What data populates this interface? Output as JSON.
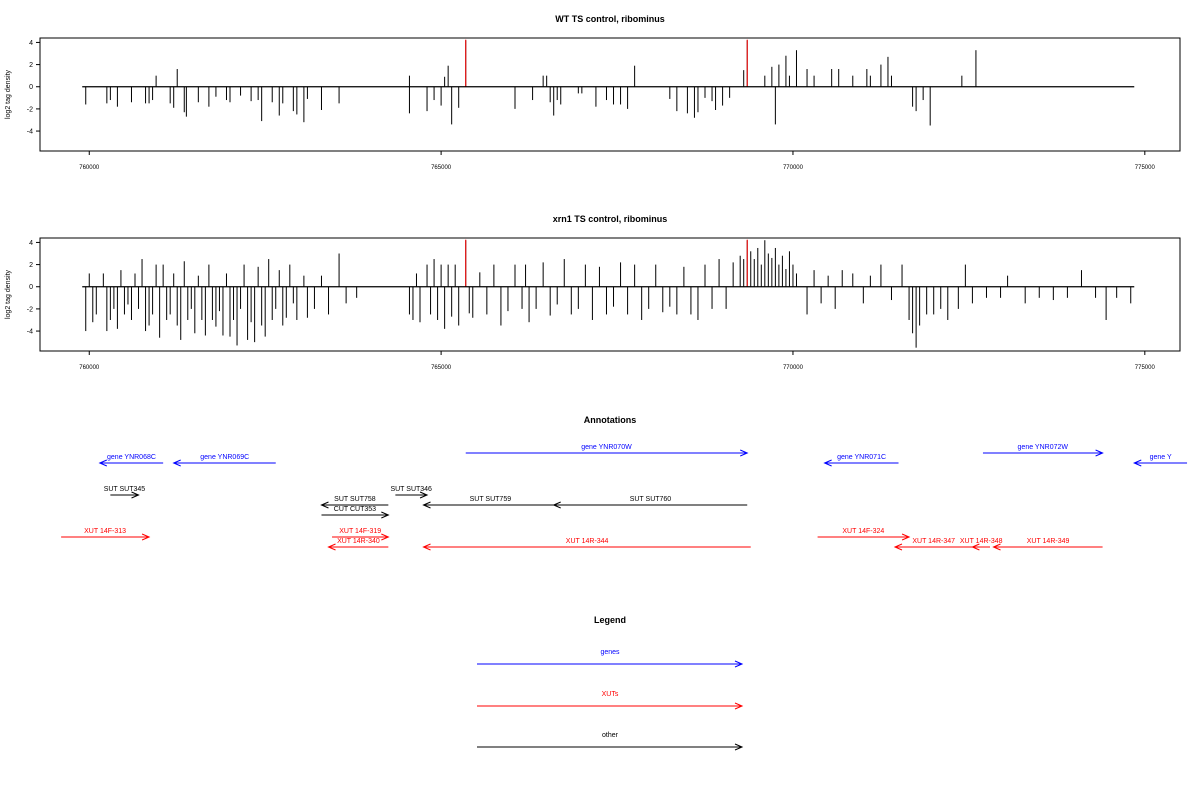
{
  "colors": {
    "bars": "#000000",
    "highlight": "#ff0000",
    "genes": "#0000ff",
    "xuts": "#ff0000",
    "other": "#000000"
  },
  "chart_data": [
    {
      "type": "bar",
      "title": "WT TS control, ribominus",
      "xlabel": "",
      "ylabel": "log2 tag density",
      "xlim": [
        759300,
        775500
      ],
      "ylim": [
        -5.8,
        4.4
      ],
      "xticks": [
        760000,
        765000,
        770000,
        775000
      ],
      "xtick_labels": [
        "760000",
        "765000",
        "770000",
        "775000"
      ],
      "yticks": [
        4,
        2,
        0,
        -2,
        -4
      ],
      "ytick_labels": [
        "4",
        "2",
        "0",
        "-2",
        "-4"
      ],
      "baseline": {
        "start": 759900,
        "end": 774850
      },
      "highlight_x": [
        765350,
        769350
      ],
      "points": [
        [
          759950,
          -1.6
        ],
        [
          760250,
          -1.5
        ],
        [
          760300,
          -1.2
        ],
        [
          760400,
          -1.8
        ],
        [
          760600,
          -1.4
        ],
        [
          760800,
          -1.5
        ],
        [
          760850,
          -1.5
        ],
        [
          760900,
          -1.2
        ],
        [
          760950,
          1.0
        ],
        [
          761150,
          -1.5
        ],
        [
          761250,
          1.6
        ],
        [
          761200,
          -1.9
        ],
        [
          761350,
          -2.3
        ],
        [
          761380,
          -2.7
        ],
        [
          761550,
          -1.4
        ],
        [
          761700,
          -1.8
        ],
        [
          761800,
          -0.9
        ],
        [
          761950,
          -1.2
        ],
        [
          762000,
          -1.4
        ],
        [
          762150,
          -0.8
        ],
        [
          762300,
          -1.3
        ],
        [
          762400,
          -1.2
        ],
        [
          762450,
          -3.1
        ],
        [
          762600,
          -1.4
        ],
        [
          762700,
          -2.6
        ],
        [
          762750,
          -1.5
        ],
        [
          762900,
          -2.2
        ],
        [
          762950,
          -2.5
        ],
        [
          763050,
          -3.2
        ],
        [
          763100,
          -1.1
        ],
        [
          763300,
          -2.1
        ],
        [
          763550,
          -1.5
        ],
        [
          764550,
          -2.4
        ],
        [
          764550,
          1.0
        ],
        [
          764800,
          -2.2
        ],
        [
          764900,
          -1.2
        ],
        [
          765000,
          -1.7
        ],
        [
          765050,
          0.9
        ],
        [
          765100,
          1.9
        ],
        [
          765150,
          -3.4
        ],
        [
          765250,
          -1.9
        ],
        [
          765350,
          4.2
        ],
        [
          766050,
          -2.0
        ],
        [
          766300,
          -1.2
        ],
        [
          766450,
          1.0
        ],
        [
          766500,
          1.0
        ],
        [
          766550,
          -1.4
        ],
        [
          766600,
          -2.6
        ],
        [
          766650,
          -1.2
        ],
        [
          766700,
          -1.6
        ],
        [
          766950,
          -0.6
        ],
        [
          767000,
          -0.6
        ],
        [
          767200,
          -1.8
        ],
        [
          767350,
          -1.2
        ],
        [
          767450,
          -1.6
        ],
        [
          767550,
          -1.6
        ],
        [
          767650,
          -2.0
        ],
        [
          767750,
          1.9
        ],
        [
          768250,
          -1.1
        ],
        [
          768350,
          -2.2
        ],
        [
          768500,
          -2.4
        ],
        [
          768600,
          -2.8
        ],
        [
          768650,
          -2.3
        ],
        [
          768750,
          -1.0
        ],
        [
          768850,
          -1.3
        ],
        [
          768900,
          -2.1
        ],
        [
          769000,
          -1.7
        ],
        [
          769100,
          -1.0
        ],
        [
          769300,
          1.5
        ],
        [
          769350,
          4.2
        ],
        [
          769600,
          1.0
        ],
        [
          769700,
          1.8
        ],
        [
          769750,
          -3.4
        ],
        [
          769800,
          2.0
        ],
        [
          769900,
          2.8
        ],
        [
          769950,
          1.0
        ],
        [
          770050,
          3.3
        ],
        [
          770200,
          1.6
        ],
        [
          770300,
          1.0
        ],
        [
          770550,
          1.6
        ],
        [
          770650,
          1.6
        ],
        [
          770850,
          1.0
        ],
        [
          771050,
          1.6
        ],
        [
          771100,
          1.0
        ],
        [
          771250,
          2.0
        ],
        [
          771350,
          2.7
        ],
        [
          771400,
          1.0
        ],
        [
          771700,
          -1.8
        ],
        [
          771750,
          -2.2
        ],
        [
          771850,
          -1.2
        ],
        [
          771950,
          -3.5
        ],
        [
          772400,
          1.0
        ],
        [
          772600,
          3.3
        ]
      ]
    },
    {
      "type": "bar",
      "title": "xrn1 TS control, ribominus",
      "xlabel": "",
      "ylabel": "log2 tag density",
      "xlim": [
        759300,
        775500
      ],
      "ylim": [
        -5.8,
        4.4
      ],
      "xticks": [
        760000,
        765000,
        770000,
        775000
      ],
      "xtick_labels": [
        "760000",
        "765000",
        "770000",
        "775000"
      ],
      "yticks": [
        4,
        2,
        0,
        -2,
        -4
      ],
      "ytick_labels": [
        "4",
        "2",
        "0",
        "-2",
        "-4"
      ],
      "baseline": {
        "start": 759900,
        "end": 774850
      },
      "highlight_x": [
        765350,
        769350
      ],
      "points": [
        [
          759950,
          -4.0
        ],
        [
          760000,
          1.2
        ],
        [
          760050,
          -3.2
        ],
        [
          760100,
          -2.5
        ],
        [
          760200,
          1.2
        ],
        [
          760250,
          -4.0
        ],
        [
          760300,
          -3.0
        ],
        [
          760350,
          -2.0
        ],
        [
          760400,
          -3.8
        ],
        [
          760450,
          1.5
        ],
        [
          760500,
          -2.5
        ],
        [
          760550,
          -1.6
        ],
        [
          760600,
          -3.0
        ],
        [
          760650,
          1.2
        ],
        [
          760700,
          -2.0
        ],
        [
          760750,
          2.5
        ],
        [
          760800,
          -4.0
        ],
        [
          760850,
          -3.5
        ],
        [
          760900,
          -2.5
        ],
        [
          760950,
          2.0
        ],
        [
          761000,
          -4.6
        ],
        [
          761050,
          2.0
        ],
        [
          761100,
          -3.0
        ],
        [
          761150,
          -2.5
        ],
        [
          761200,
          1.2
        ],
        [
          761250,
          -3.5
        ],
        [
          761300,
          -4.8
        ],
        [
          761350,
          2.3
        ],
        [
          761400,
          -3.0
        ],
        [
          761450,
          -2.0
        ],
        [
          761500,
          -4.2
        ],
        [
          761550,
          1.0
        ],
        [
          761600,
          -3.0
        ],
        [
          761650,
          -4.4
        ],
        [
          761700,
          2.0
        ],
        [
          761750,
          -3.0
        ],
        [
          761800,
          -3.6
        ],
        [
          761850,
          -2.2
        ],
        [
          761900,
          -4.4
        ],
        [
          761950,
          1.2
        ],
        [
          762000,
          -4.5
        ],
        [
          762050,
          -3.0
        ],
        [
          762100,
          -5.3
        ],
        [
          762150,
          -2.0
        ],
        [
          762200,
          2.0
        ],
        [
          762250,
          -4.8
        ],
        [
          762300,
          -3.2
        ],
        [
          762350,
          -5.0
        ],
        [
          762400,
          1.8
        ],
        [
          762450,
          -3.5
        ],
        [
          762500,
          -4.5
        ],
        [
          762550,
          2.5
        ],
        [
          762600,
          -3.0
        ],
        [
          762650,
          -2.0
        ],
        [
          762700,
          1.5
        ],
        [
          762750,
          -3.5
        ],
        [
          762800,
          -2.8
        ],
        [
          762850,
          2.0
        ],
        [
          762900,
          -1.5
        ],
        [
          762950,
          -3.0
        ],
        [
          763050,
          1.0
        ],
        [
          763100,
          -2.8
        ],
        [
          763200,
          -2.0
        ],
        [
          763300,
          1.0
        ],
        [
          763400,
          -2.5
        ],
        [
          763550,
          3.0
        ],
        [
          763650,
          -1.5
        ],
        [
          763800,
          -1.0
        ],
        [
          764550,
          -2.5
        ],
        [
          764600,
          -3.0
        ],
        [
          764650,
          1.2
        ],
        [
          764700,
          -3.2
        ],
        [
          764800,
          2.0
        ],
        [
          764850,
          -2.5
        ],
        [
          764900,
          2.5
        ],
        [
          764950,
          -3.0
        ],
        [
          765000,
          2.0
        ],
        [
          765050,
          -3.8
        ],
        [
          765100,
          2.0
        ],
        [
          765150,
          -2.7
        ],
        [
          765200,
          2.0
        ],
        [
          765250,
          -3.5
        ],
        [
          765350,
          4.2
        ],
        [
          765400,
          -2.4
        ],
        [
          765450,
          -2.8
        ],
        [
          765550,
          1.3
        ],
        [
          765650,
          -2.5
        ],
        [
          765750,
          2.0
        ],
        [
          765850,
          -3.5
        ],
        [
          765950,
          -2.2
        ],
        [
          766050,
          2.0
        ],
        [
          766150,
          -2.0
        ],
        [
          766200,
          2.0
        ],
        [
          766250,
          -3.2
        ],
        [
          766350,
          -2.0
        ],
        [
          766450,
          2.2
        ],
        [
          766550,
          -2.6
        ],
        [
          766650,
          -1.6
        ],
        [
          766750,
          2.5
        ],
        [
          766850,
          -2.5
        ],
        [
          766950,
          -2.0
        ],
        [
          767050,
          2.0
        ],
        [
          767150,
          -3.0
        ],
        [
          767250,
          1.8
        ],
        [
          767350,
          -2.5
        ],
        [
          767450,
          -1.8
        ],
        [
          767550,
          2.2
        ],
        [
          767650,
          -2.5
        ],
        [
          767750,
          2.0
        ],
        [
          767850,
          -3.0
        ],
        [
          767950,
          -2.0
        ],
        [
          768050,
          2.0
        ],
        [
          768150,
          -2.3
        ],
        [
          768250,
          -1.8
        ],
        [
          768350,
          -2.5
        ],
        [
          768450,
          1.8
        ],
        [
          768550,
          -2.5
        ],
        [
          768650,
          -3.0
        ],
        [
          768750,
          2.0
        ],
        [
          768850,
          -2.0
        ],
        [
          768950,
          2.5
        ],
        [
          769050,
          -2.0
        ],
        [
          769150,
          2.2
        ],
        [
          769250,
          2.8
        ],
        [
          769300,
          2.5
        ],
        [
          769350,
          4.2
        ],
        [
          769400,
          3.2
        ],
        [
          769450,
          2.5
        ],
        [
          769500,
          3.5
        ],
        [
          769550,
          2.0
        ],
        [
          769600,
          4.2
        ],
        [
          769650,
          3.0
        ],
        [
          769700,
          2.6
        ],
        [
          769750,
          3.5
        ],
        [
          769800,
          2.0
        ],
        [
          769850,
          2.8
        ],
        [
          769900,
          1.6
        ],
        [
          769950,
          3.2
        ],
        [
          770000,
          2.0
        ],
        [
          770050,
          1.2
        ],
        [
          770200,
          -2.5
        ],
        [
          770300,
          1.5
        ],
        [
          770400,
          -1.5
        ],
        [
          770500,
          1.0
        ],
        [
          770600,
          -2.0
        ],
        [
          770700,
          1.5
        ],
        [
          770850,
          1.2
        ],
        [
          771000,
          -1.5
        ],
        [
          771100,
          1.0
        ],
        [
          771250,
          2.0
        ],
        [
          771400,
          -1.2
        ],
        [
          771550,
          2.0
        ],
        [
          771650,
          -3.0
        ],
        [
          771700,
          -4.2
        ],
        [
          771750,
          -5.5
        ],
        [
          771800,
          -3.5
        ],
        [
          771900,
          -2.5
        ],
        [
          772000,
          -2.5
        ],
        [
          772100,
          -2.0
        ],
        [
          772200,
          -3.0
        ],
        [
          772350,
          -2.0
        ],
        [
          772450,
          2.0
        ],
        [
          772550,
          -1.5
        ],
        [
          772750,
          -1.0
        ],
        [
          772950,
          -1.0
        ],
        [
          773050,
          1.0
        ],
        [
          773300,
          -1.5
        ],
        [
          773500,
          -1.0
        ],
        [
          773700,
          -1.2
        ],
        [
          773900,
          -1.0
        ],
        [
          774100,
          1.5
        ],
        [
          774300,
          -1.0
        ],
        [
          774450,
          -3.0
        ],
        [
          774600,
          -1.0
        ],
        [
          774800,
          -1.5
        ]
      ]
    }
  ],
  "annotations": {
    "title": "Annotations",
    "xlim": [
      759300,
      775500
    ],
    "features": [
      {
        "label": "gene YNR068C",
        "dir": "left",
        "start": 760150,
        "end": 761050,
        "row": 1,
        "color": "genes"
      },
      {
        "label": "gene YNR069C",
        "dir": "left",
        "start": 761200,
        "end": 762650,
        "row": 1,
        "color": "genes"
      },
      {
        "label": "gene YNR070W",
        "dir": "right",
        "start": 765350,
        "end": 769350,
        "row": 0,
        "color": "genes"
      },
      {
        "label": "gene YNR071C",
        "dir": "left",
        "start": 770450,
        "end": 771500,
        "row": 1,
        "color": "genes"
      },
      {
        "label": "gene YNR072W",
        "dir": "right",
        "start": 772700,
        "end": 774400,
        "row": 0,
        "color": "genes"
      },
      {
        "label": "gene Y",
        "dir": "left",
        "start": 774850,
        "end": 775600,
        "row": 1,
        "color": "genes"
      },
      {
        "label": "SUT SUT345",
        "dir": "right",
        "start": 760300,
        "end": 760700,
        "row": 2,
        "color": "other"
      },
      {
        "label": "SUT SUT758",
        "dir": "left",
        "start": 763300,
        "end": 764250,
        "row": 3,
        "color": "other"
      },
      {
        "label": "CUT CUT353",
        "dir": "right",
        "start": 763300,
        "end": 764250,
        "row": 4,
        "color": "other"
      },
      {
        "label": "SUT SUT346",
        "dir": "right",
        "start": 764350,
        "end": 764800,
        "row": 2,
        "color": "other"
      },
      {
        "label": "SUT SUT759",
        "dir": "left",
        "start": 764750,
        "end": 766650,
        "row": 3,
        "color": "other"
      },
      {
        "label": "SUT SUT760",
        "dir": "left",
        "start": 766600,
        "end": 769350,
        "row": 3,
        "color": "other"
      },
      {
        "label": "XUT 14F-313",
        "dir": "right",
        "start": 759600,
        "end": 760850,
        "row": 5,
        "color": "xuts"
      },
      {
        "label": "XUT 14F-319",
        "dir": "right",
        "start": 763450,
        "end": 764250,
        "row": 5,
        "color": "xuts"
      },
      {
        "label": "XUT 14R-340",
        "dir": "left",
        "start": 763400,
        "end": 764250,
        "row": 6,
        "color": "xuts"
      },
      {
        "label": "XUT 14R-344",
        "dir": "left",
        "start": 764750,
        "end": 769400,
        "row": 6,
        "color": "xuts"
      },
      {
        "label": "XUT 14F-324",
        "dir": "right",
        "start": 770350,
        "end": 771650,
        "row": 5,
        "color": "xuts"
      },
      {
        "label": "XUT 14R-347",
        "dir": "left",
        "start": 771450,
        "end": 772550,
        "row": 6,
        "color": "xuts"
      },
      {
        "label": "XUT 14R-348",
        "dir": "left",
        "start": 772550,
        "end": 772800,
        "row": 6,
        "color": "xuts"
      },
      {
        "label": "XUT 14R-349",
        "dir": "left",
        "start": 772850,
        "end": 774400,
        "row": 6,
        "color": "xuts"
      }
    ]
  },
  "legend": {
    "title": "Legend",
    "items": [
      {
        "label": "genes",
        "color": "genes"
      },
      {
        "label": "XUTs",
        "color": "xuts"
      },
      {
        "label": "other",
        "color": "other"
      }
    ]
  }
}
